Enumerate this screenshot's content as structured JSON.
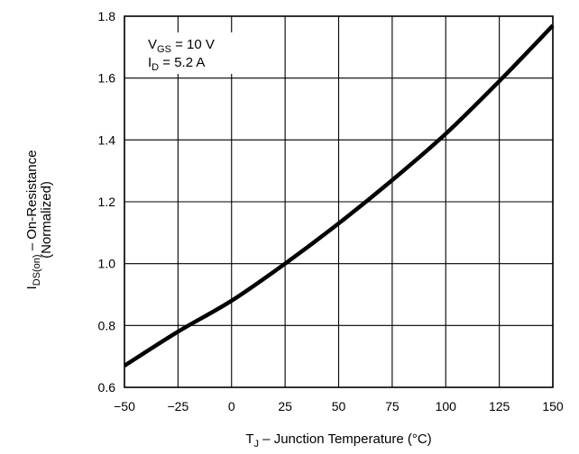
{
  "chart_data": {
    "type": "line",
    "xlabel": {
      "main": "T",
      "sub": "J",
      "rest": " – Junction Temperature (°C)"
    },
    "ylabel": {
      "main": "I",
      "sub": "DS(on)",
      "rest": " – On-Resistance",
      "line2": "(Normalized)"
    },
    "xlim": [
      -50,
      150
    ],
    "ylim": [
      0.6,
      1.8
    ],
    "xticks": [
      -50,
      -25,
      0,
      25,
      50,
      75,
      100,
      125,
      150
    ],
    "yticks": [
      0.6,
      0.8,
      1.0,
      1.2,
      1.4,
      1.6,
      1.8
    ],
    "xtick_labels": [
      "−50",
      "−25",
      "0",
      "25",
      "50",
      "75",
      "100",
      "125",
      "150"
    ],
    "ytick_labels": [
      "0.6",
      "0.8",
      "1.0",
      "1.2",
      "1.4",
      "1.6",
      "1.8"
    ],
    "grid": true,
    "annotations": [
      {
        "main": "V",
        "sub": "GS",
        "rest": " = 10 V"
      },
      {
        "main": "I",
        "sub": "D",
        "rest": " = 5.2 A"
      }
    ],
    "series": [
      {
        "x": [
          -50,
          -25,
          0,
          25,
          50,
          75,
          100,
          125,
          150
        ],
        "y": [
          0.67,
          0.78,
          0.88,
          1.0,
          1.13,
          1.27,
          1.42,
          1.59,
          1.77
        ]
      }
    ]
  }
}
